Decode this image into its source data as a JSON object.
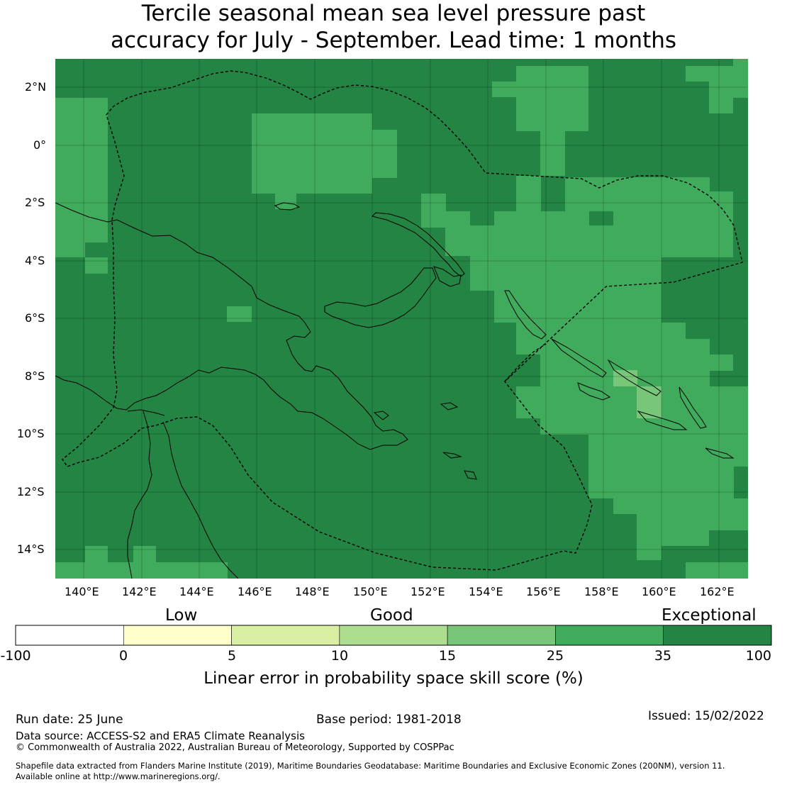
{
  "title": {
    "line1": "Tercile seasonal mean sea level pressure past",
    "line2": "accuracy for July - September. Lead time: 1 months"
  },
  "map": {
    "lon_labels": [
      "140°E",
      "142°E",
      "144°E",
      "146°E",
      "148°E",
      "150°E",
      "152°E",
      "154°E",
      "156°E",
      "158°E",
      "160°E",
      "162°E"
    ],
    "lat_labels": [
      "2°N",
      "0°",
      "2°S",
      "4°S",
      "6°S",
      "8°S",
      "10°S",
      "12°S",
      "14°S"
    ],
    "lon_range": [
      139,
      163
    ],
    "lat_range": [
      -15,
      3
    ]
  },
  "colorbar": {
    "category_labels": [
      "Low",
      "Good",
      "Exceptional"
    ],
    "ticks": [
      "-100",
      "0",
      "5",
      "10",
      "15",
      "25",
      "35",
      "100"
    ],
    "colors": [
      "#ffffff",
      "#ffffcc",
      "#d9f0a3",
      "#addd8e",
      "#78c679",
      "#41ab5d",
      "#238443"
    ],
    "title": "Linear error in probability space skill score (%)"
  },
  "footer": {
    "run_date": "Run date: 25 June",
    "base_period": "Base period: 1981-2018",
    "issued": "Issued: 15/02/2022",
    "data_source": "Data source: ACCESS-S2 and ERA5 Climate Reanalysis",
    "copyright": "© Commonwealth of Australia 2022, Australian Bureau of Meteorology, Supported by COSPPac",
    "shapefile_1": "Shapefile data extracted from Flanders Marine Institute (2019), Maritime Boundaries Geodatabase: Maritime Boundaries and Exclusive Economic Zones (200NM), version 11.",
    "shapefile_2": "Available online at http://www.marineregions.org/."
  }
}
